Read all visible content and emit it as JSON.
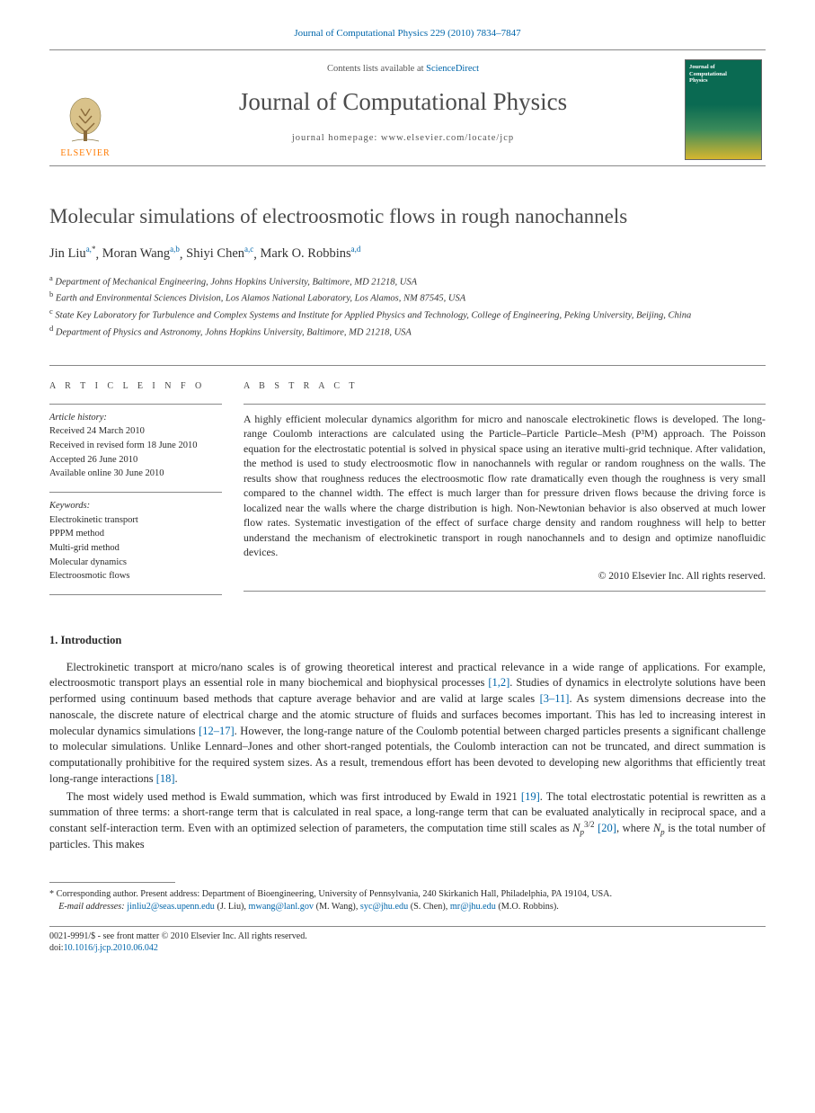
{
  "citation": {
    "prefix": "Journal of Computational Physics 229 (2010) 7834–7847",
    "journal_link": "Journal of Computational Physics"
  },
  "masthead": {
    "publisher": "ELSEVIER",
    "avail_prefix": "Contents lists available at ",
    "avail_link": "ScienceDirect",
    "journal_name": "Journal of Computational Physics",
    "homepage_label": "journal homepage: www.elsevier.com/locate/jcp",
    "cover_line1": "Journal of",
    "cover_line2": "Computational",
    "cover_line3": "Physics",
    "colors": {
      "rule": "#888888",
      "publisher": "#ff7a00",
      "link": "#0066aa"
    }
  },
  "title": "Molecular simulations of electroosmotic flows in rough nanochannels",
  "authors_html": [
    {
      "name": "Jin Liu",
      "sup": "a,*"
    },
    {
      "name": "Moran Wang",
      "sup": "a,b"
    },
    {
      "name": "Shiyi Chen",
      "sup": "a,c"
    },
    {
      "name": "Mark O. Robbins",
      "sup": "a,d"
    }
  ],
  "affiliations": [
    {
      "key": "a",
      "text": "Department of Mechanical Engineering, Johns Hopkins University, Baltimore, MD 21218, USA"
    },
    {
      "key": "b",
      "text": "Earth and Environmental Sciences Division, Los Alamos National Laboratory, Los Alamos, NM 87545, USA"
    },
    {
      "key": "c",
      "text": "State Key Laboratory for Turbulence and Complex Systems and Institute for Applied Physics and Technology, College of Engineering, Peking University, Beijing, China"
    },
    {
      "key": "d",
      "text": "Department of Physics and Astronomy, Johns Hopkins University, Baltimore, MD 21218, USA"
    }
  ],
  "info": {
    "label": "A R T I C L E   I N F O",
    "history_heading": "Article history:",
    "history": [
      "Received 24 March 2010",
      "Received in revised form 18 June 2010",
      "Accepted 26 June 2010",
      "Available online 30 June 2010"
    ],
    "keywords_heading": "Keywords:",
    "keywords": [
      "Electrokinetic transport",
      "PPPM method",
      "Multi-grid method",
      "Molecular dynamics",
      "Electroosmotic flows"
    ]
  },
  "abstract": {
    "label": "A B S T R A C T",
    "text": "A highly efficient molecular dynamics algorithm for micro and nanoscale electrokinetic flows is developed. The long-range Coulomb interactions are calculated using the Particle–Particle Particle–Mesh (P³M) approach. The Poisson equation for the electrostatic potential is solved in physical space using an iterative multi-grid technique. After validation, the method is used to study electroosmotic flow in nanochannels with regular or random roughness on the walls. The results show that roughness reduces the electroosmotic flow rate dramatically even though the roughness is very small compared to the channel width. The effect is much larger than for pressure driven flows because the driving force is localized near the walls where the charge distribution is high. Non-Newtonian behavior is also observed at much lower flow rates. Systematic investigation of the effect of surface charge density and random roughness will help to better understand the mechanism of electrokinetic transport in rough nanochannels and to design and optimize nanofluidic devices.",
    "copyright": "© 2010 Elsevier Inc. All rights reserved."
  },
  "intro": {
    "heading": "1. Introduction",
    "p1_parts": [
      "Electrokinetic transport at micro/nano scales is of growing theoretical interest and practical relevance in a wide range of applications. For example, electroosmotic transport plays an essential role in many biochemical and biophysical processes ",
      "[1,2]",
      ". Studies of dynamics in electrolyte solutions have been performed using continuum based methods that capture average behavior and are valid at large scales ",
      "[3–11]",
      ". As system dimensions decrease into the nanoscale, the discrete nature of electrical charge and the atomic structure of fluids and surfaces becomes important. This has led to increasing interest in molecular dynamics simulations ",
      "[12–17]",
      ". However, the long-range nature of the Coulomb potential between charged particles presents a significant challenge to molecular simulations. Unlike Lennard–Jones and other short-ranged potentials, the Coulomb interaction can not be truncated, and direct summation is computationally prohibitive for the required system sizes. As a result, tremendous effort has been devoted to developing new algorithms that efficiently treat long-range interactions ",
      "[18]",
      "."
    ],
    "p2_parts": [
      "The most widely used method is Ewald summation, which was first introduced by Ewald in 1921 ",
      "[19]",
      ". The total electrostatic potential is rewritten as a summation of three terms: a short-range term that is calculated in real space, a long-range term that can be evaluated analytically in reciprocal space, and a constant self-interaction term. Even with an optimized selection of parameters, the computation time still scales as ",
      "N_p^{3/2}",
      " ",
      "[20]",
      ", where ",
      "N_p",
      " is the total number of particles. This makes"
    ]
  },
  "footnote": {
    "star": "*",
    "corresponding": "Corresponding author. Present address: Department of Bioengineering, University of Pennsylvania, 240 Skirkanich Hall, Philadelphia, PA 19104, USA.",
    "email_label": "E-mail addresses:",
    "emails": [
      {
        "addr": "jinliu2@seas.upenn.edu",
        "who": "(J. Liu)"
      },
      {
        "addr": "mwang@lanl.gov",
        "who": "(M. Wang)"
      },
      {
        "addr": "syc@jhu.edu",
        "who": "(S. Chen)"
      },
      {
        "addr": "mr@jhu.edu",
        "who": "(M.O. Robbins)"
      }
    ]
  },
  "footer": {
    "line1": "0021-9991/$ - see front matter © 2010 Elsevier Inc. All rights reserved.",
    "doi_label": "doi:",
    "doi": "10.1016/j.jcp.2010.06.042"
  }
}
